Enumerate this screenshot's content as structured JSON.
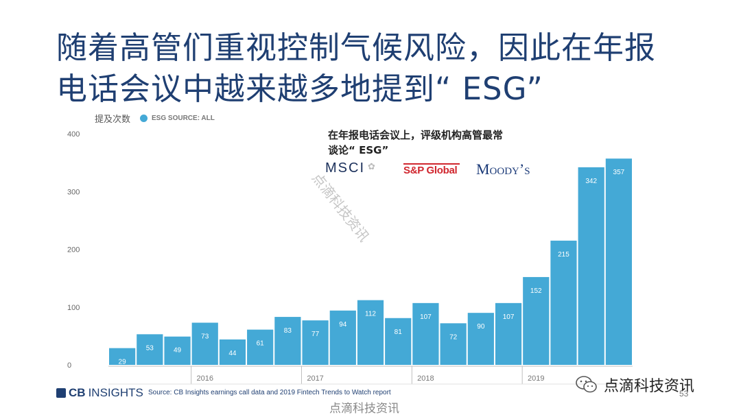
{
  "slide": {
    "title_line1": "随着高管们重视控制气候风险，因此在年报",
    "title_line2": "电话会议中越来越多地提到“ ESG”",
    "callout_line1": "在年报电话会议上，评级机构高管最常",
    "callout_line2": "谈论“ ESG”",
    "logos": {
      "msci": "MSCI",
      "sp": "S&P Global",
      "moodys": "Moody’s"
    },
    "footer_brand_a": "CB",
    "footer_brand_b": "INSIGHTS",
    "source": "Source: CB Insights earnings call data and 2019 Fintech Trends to Watch report",
    "watermark": "点滴科技资讯",
    "wechat_account": "点滴科技资讯",
    "page_number": "53"
  },
  "chart_data": {
    "type": "bar",
    "title": "",
    "ylabel": "提及次数",
    "xlabel": "",
    "ylim": [
      0,
      400
    ],
    "yticks": [
      "0",
      "100",
      "200",
      "300",
      "400"
    ],
    "legend": {
      "label": "ESG SOURCE: ALL",
      "color": "#44a9d6",
      "placement": "top-left"
    },
    "bar_color": "#44a9d6",
    "years": [
      "2016",
      "2017",
      "2018",
      "2019"
    ],
    "series": [
      {
        "values": [
          29,
          53,
          49,
          73,
          44,
          61,
          83,
          77,
          94,
          112,
          81,
          107,
          72,
          90,
          107,
          152,
          215,
          342,
          357
        ]
      }
    ],
    "grid": false
  }
}
